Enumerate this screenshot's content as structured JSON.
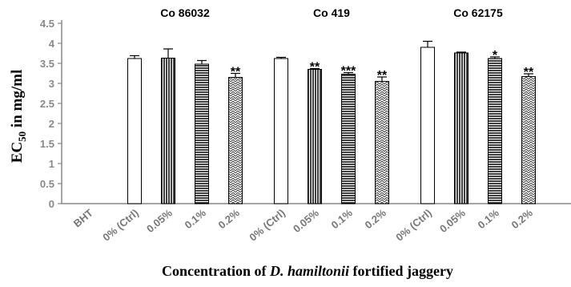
{
  "chart_data": {
    "type": "bar",
    "ylabel": {
      "main": "EC",
      "sub": "50",
      "rest": " in mg/ml"
    },
    "xlabel": {
      "pre": "Concentration of ",
      "italic": "D. hamiltonii",
      "post": " fortified jaggery"
    },
    "ylim": [
      0,
      4.5
    ],
    "yticks": [
      "0",
      "0.5",
      "1",
      "1.5",
      "2",
      "2.5",
      "3",
      "3.5",
      "4",
      "4.5"
    ],
    "grid": false,
    "groups": [
      {
        "name": "",
        "bars": [
          {
            "category": "BHT",
            "value": null,
            "error": 0,
            "pattern": "none",
            "sig": ""
          }
        ]
      },
      {
        "name": "Co 86032",
        "bars": [
          {
            "category": "0% (Ctrl)",
            "value": 3.62,
            "error": 0.07,
            "pattern": "plain",
            "sig": ""
          },
          {
            "category": "0.05%",
            "value": 3.63,
            "error": 0.23,
            "pattern": "vertical",
            "sig": ""
          },
          {
            "category": "0.1%",
            "value": 3.48,
            "error": 0.09,
            "pattern": "horizontal",
            "sig": ""
          },
          {
            "category": "0.2%",
            "value": 3.15,
            "error": 0.1,
            "pattern": "zigzag",
            "sig": "**"
          }
        ]
      },
      {
        "name": "Co 419",
        "bars": [
          {
            "category": "0% (Ctrl)",
            "value": 3.62,
            "error": 0.03,
            "pattern": "plain",
            "sig": ""
          },
          {
            "category": "0.05%",
            "value": 3.35,
            "error": 0.02,
            "pattern": "vertical",
            "sig": "**"
          },
          {
            "category": "0.1%",
            "value": 3.23,
            "error": 0.04,
            "pattern": "horizontal",
            "sig": "***"
          },
          {
            "category": "0.2%",
            "value": 3.05,
            "error": 0.11,
            "pattern": "zigzag",
            "sig": "**"
          }
        ]
      },
      {
        "name": "Co 62175",
        "bars": [
          {
            "category": "0% (Ctrl)",
            "value": 3.9,
            "error": 0.15,
            "pattern": "plain",
            "sig": ""
          },
          {
            "category": "0.05%",
            "value": 3.76,
            "error": 0.02,
            "pattern": "vertical",
            "sig": ""
          },
          {
            "category": "0.1%",
            "value": 3.62,
            "error": 0.04,
            "pattern": "horizontal",
            "sig": "*"
          },
          {
            "category": "0.2%",
            "value": 3.17,
            "error": 0.07,
            "pattern": "zigzag",
            "sig": "**"
          }
        ]
      }
    ]
  }
}
